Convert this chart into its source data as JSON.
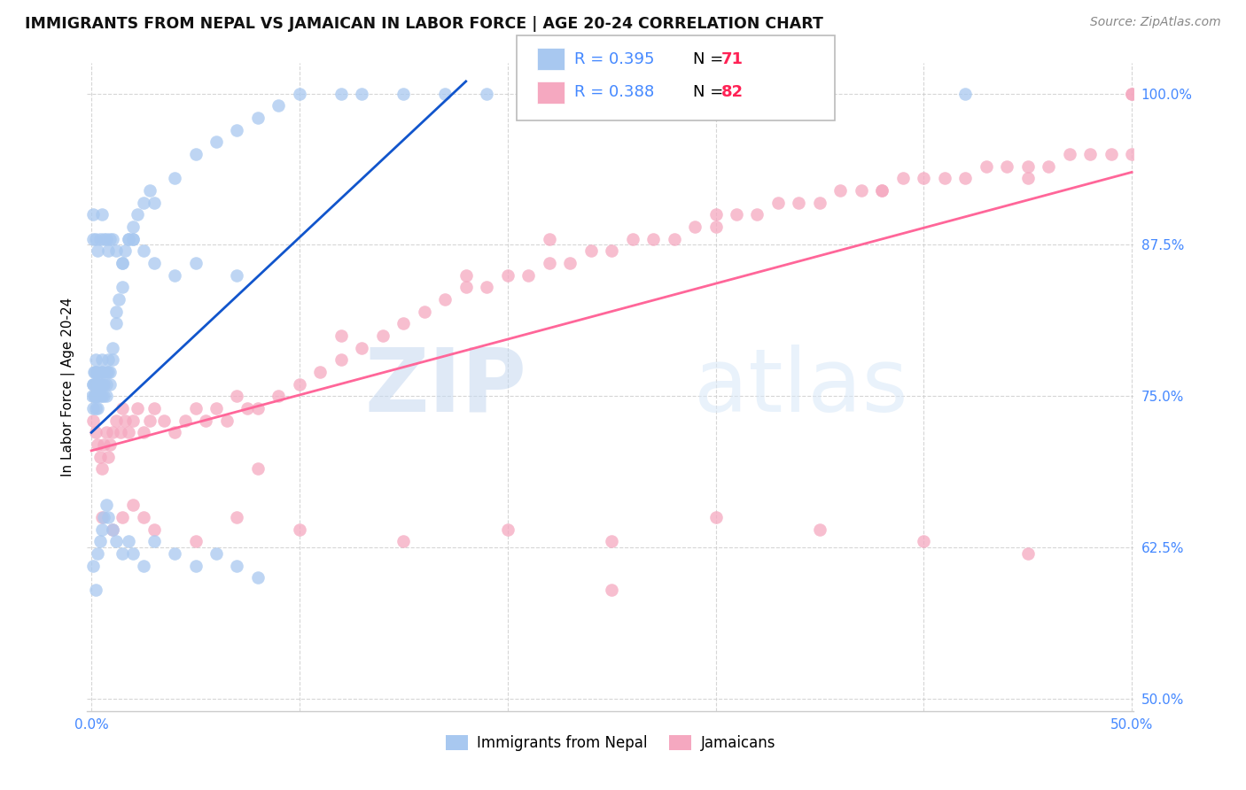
{
  "title": "IMMIGRANTS FROM NEPAL VS JAMAICAN IN LABOR FORCE | AGE 20-24 CORRELATION CHART",
  "source": "Source: ZipAtlas.com",
  "ylabel": "In Labor Force | Age 20-24",
  "xlim": [
    -0.002,
    0.501
  ],
  "ylim": [
    0.49,
    1.025
  ],
  "nepal_color": "#A8C8F0",
  "jamaican_color": "#F5A8C0",
  "nepal_R": 0.395,
  "nepal_N": 71,
  "jamaican_R": 0.388,
  "jamaican_N": 82,
  "legend_R_color": "#4488FF",
  "legend_N_color": "#FF2255",
  "trendline_nepal_color": "#1155CC",
  "trendline_jamaican_color": "#FF6699",
  "watermark_zip": "ZIP",
  "watermark_atlas": "atlas",
  "nepal_x": [
    0.0005,
    0.0008,
    0.001,
    0.001,
    0.0012,
    0.0013,
    0.0015,
    0.0015,
    0.0015,
    0.002,
    0.002,
    0.002,
    0.0022,
    0.0022,
    0.0025,
    0.0025,
    0.003,
    0.003,
    0.003,
    0.003,
    0.003,
    0.0035,
    0.004,
    0.004,
    0.004,
    0.005,
    0.005,
    0.005,
    0.005,
    0.006,
    0.006,
    0.006,
    0.007,
    0.007,
    0.007,
    0.008,
    0.008,
    0.009,
    0.009,
    0.01,
    0.01,
    0.012,
    0.012,
    0.013,
    0.015,
    0.015,
    0.016,
    0.018,
    0.02,
    0.02,
    0.022,
    0.025,
    0.028,
    0.03,
    0.04,
    0.05,
    0.06,
    0.07,
    0.08,
    0.09,
    0.1,
    0.12,
    0.13,
    0.15,
    0.17,
    0.19,
    0.22,
    0.25,
    0.28,
    0.35,
    0.42
  ],
  "nepal_y": [
    0.75,
    0.76,
    0.74,
    0.76,
    0.77,
    0.75,
    0.76,
    0.75,
    0.77,
    0.75,
    0.76,
    0.74,
    0.75,
    0.78,
    0.76,
    0.77,
    0.75,
    0.76,
    0.74,
    0.75,
    0.77,
    0.76,
    0.75,
    0.77,
    0.76,
    0.75,
    0.76,
    0.77,
    0.78,
    0.76,
    0.75,
    0.77,
    0.76,
    0.75,
    0.77,
    0.77,
    0.78,
    0.76,
    0.77,
    0.78,
    0.79,
    0.81,
    0.82,
    0.83,
    0.84,
    0.86,
    0.87,
    0.88,
    0.88,
    0.89,
    0.9,
    0.91,
    0.92,
    0.91,
    0.93,
    0.95,
    0.96,
    0.97,
    0.98,
    0.99,
    1.0,
    1.0,
    1.0,
    1.0,
    1.0,
    1.0,
    1.0,
    1.0,
    1.0,
    1.0,
    1.0
  ],
  "nepal_x_extra": [
    0.001,
    0.001,
    0.002,
    0.003,
    0.004,
    0.005,
    0.006,
    0.007,
    0.008,
    0.009,
    0.01,
    0.012,
    0.015,
    0.018,
    0.02,
    0.025,
    0.03,
    0.04,
    0.05,
    0.07
  ],
  "nepal_y_extra": [
    0.88,
    0.9,
    0.88,
    0.87,
    0.88,
    0.9,
    0.88,
    0.88,
    0.87,
    0.88,
    0.88,
    0.87,
    0.86,
    0.88,
    0.88,
    0.87,
    0.86,
    0.85,
    0.86,
    0.85
  ],
  "nepal_x_low": [
    0.001,
    0.002,
    0.003,
    0.004,
    0.005,
    0.006,
    0.007,
    0.008,
    0.01,
    0.012,
    0.015,
    0.018,
    0.02,
    0.025,
    0.03,
    0.04,
    0.05,
    0.06,
    0.07,
    0.08
  ],
  "nepal_y_low": [
    0.61,
    0.59,
    0.62,
    0.63,
    0.64,
    0.65,
    0.66,
    0.65,
    0.64,
    0.63,
    0.62,
    0.63,
    0.62,
    0.61,
    0.63,
    0.62,
    0.61,
    0.62,
    0.61,
    0.6
  ],
  "jamaican_x": [
    0.001,
    0.002,
    0.003,
    0.004,
    0.005,
    0.006,
    0.007,
    0.008,
    0.009,
    0.01,
    0.012,
    0.014,
    0.015,
    0.016,
    0.018,
    0.02,
    0.022,
    0.025,
    0.028,
    0.03,
    0.035,
    0.04,
    0.045,
    0.05,
    0.055,
    0.06,
    0.065,
    0.07,
    0.075,
    0.08,
    0.09,
    0.1,
    0.11,
    0.12,
    0.13,
    0.14,
    0.15,
    0.16,
    0.17,
    0.18,
    0.19,
    0.2,
    0.21,
    0.22,
    0.23,
    0.24,
    0.25,
    0.26,
    0.27,
    0.28,
    0.29,
    0.3,
    0.31,
    0.32,
    0.33,
    0.34,
    0.35,
    0.36,
    0.37,
    0.38,
    0.39,
    0.4,
    0.41,
    0.42,
    0.43,
    0.44,
    0.45,
    0.46,
    0.47,
    0.48,
    0.49,
    0.5,
    0.5,
    0.5,
    0.12,
    0.18,
    0.22,
    0.3,
    0.38,
    0.45,
    0.08,
    0.25
  ],
  "jamaican_y": [
    0.73,
    0.72,
    0.71,
    0.7,
    0.69,
    0.71,
    0.72,
    0.7,
    0.71,
    0.72,
    0.73,
    0.72,
    0.74,
    0.73,
    0.72,
    0.73,
    0.74,
    0.72,
    0.73,
    0.74,
    0.73,
    0.72,
    0.73,
    0.74,
    0.73,
    0.74,
    0.73,
    0.75,
    0.74,
    0.74,
    0.75,
    0.76,
    0.77,
    0.78,
    0.79,
    0.8,
    0.81,
    0.82,
    0.83,
    0.84,
    0.84,
    0.85,
    0.85,
    0.86,
    0.86,
    0.87,
    0.87,
    0.88,
    0.88,
    0.88,
    0.89,
    0.89,
    0.9,
    0.9,
    0.91,
    0.91,
    0.91,
    0.92,
    0.92,
    0.92,
    0.93,
    0.93,
    0.93,
    0.93,
    0.94,
    0.94,
    0.94,
    0.94,
    0.95,
    0.95,
    0.95,
    0.95,
    1.0,
    1.0,
    0.8,
    0.85,
    0.88,
    0.9,
    0.92,
    0.93,
    0.69,
    0.59
  ],
  "jamaican_x_low": [
    0.005,
    0.01,
    0.015,
    0.02,
    0.025,
    0.03,
    0.05,
    0.07,
    0.1,
    0.15,
    0.2,
    0.25,
    0.3,
    0.35,
    0.4,
    0.45
  ],
  "jamaican_y_low": [
    0.65,
    0.64,
    0.65,
    0.66,
    0.65,
    0.64,
    0.63,
    0.65,
    0.64,
    0.63,
    0.64,
    0.63,
    0.65,
    0.64,
    0.63,
    0.62
  ]
}
